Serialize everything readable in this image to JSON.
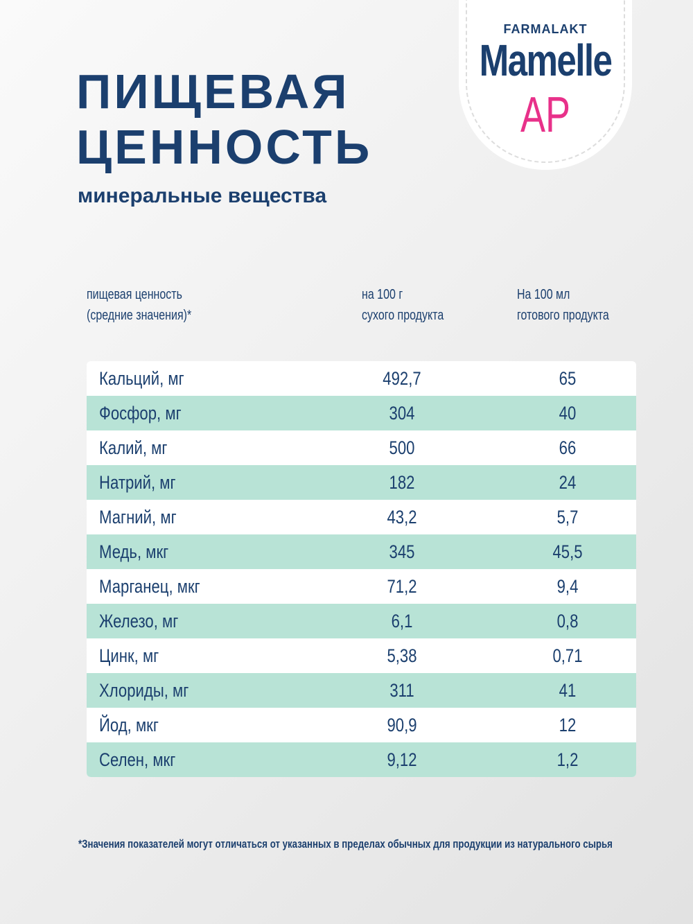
{
  "logo": {
    "brand": "FARMALAKT",
    "name": "Mamelle",
    "variant": "АР"
  },
  "header": {
    "title_line1": "ПИЩЕВАЯ",
    "title_line2": "ЦЕННОСТЬ",
    "subtitle": "минеральные вещества"
  },
  "table": {
    "columns": [
      [
        "пищевая ценность",
        "(средние значения)*"
      ],
      [
        "на 100 г",
        "сухого продукта"
      ],
      [
        "На 100 мл",
        "готового продукта"
      ]
    ],
    "rows": [
      [
        "Кальций, мг",
        "492,7",
        "65"
      ],
      [
        "Фосфор, мг",
        "304",
        "40"
      ],
      [
        "Калий, мг",
        "500",
        "66"
      ],
      [
        "Натрий, мг",
        "182",
        "24"
      ],
      [
        "Магний, мг",
        "43,2",
        "5,7"
      ],
      [
        "Медь, мкг",
        "345",
        "45,5"
      ],
      [
        "Марганец, мкг",
        "71,2",
        "9,4"
      ],
      [
        "Железо, мг",
        "6,1",
        "0,8"
      ],
      [
        "Цинк, мг",
        "5,38",
        "0,71"
      ],
      [
        "Хлориды, мг",
        "311",
        "41"
      ],
      [
        "Йод, мкг",
        "90,9",
        "12"
      ],
      [
        "Селен, мкг",
        "9,12",
        "1,2"
      ]
    ]
  },
  "footnote": "*Значения показателей могут отличаться от указанных в пределах обычных для продукции из натурального сырья"
}
